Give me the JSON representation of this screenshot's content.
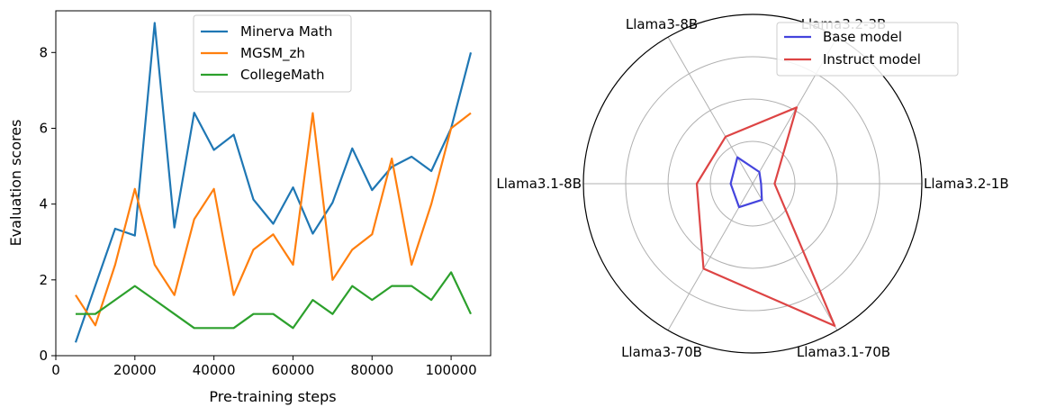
{
  "chart_data": [
    {
      "type": "line",
      "title": "",
      "xlabel": "Pre-training steps",
      "ylabel": "Evaluation scores",
      "xlim": [
        0,
        110000
      ],
      "ylim": [
        0,
        9.1
      ],
      "xticks": [
        0,
        20000,
        40000,
        60000,
        80000,
        100000
      ],
      "xtick_labels": [
        "0",
        "20000",
        "40000",
        "60000",
        "80000",
        "100000"
      ],
      "yticks": [
        0,
        2,
        4,
        6,
        8
      ],
      "ytick_labels": [
        "0",
        "2",
        "4",
        "6",
        "8"
      ],
      "grid": false,
      "legend_position": "top-center",
      "x": [
        5000,
        10000,
        15000,
        20000,
        25000,
        30000,
        35000,
        40000,
        45000,
        50000,
        55000,
        60000,
        65000,
        70000,
        75000,
        80000,
        85000,
        90000,
        95000,
        100000,
        105000
      ],
      "series": [
        {
          "name": "Minerva Math",
          "color": "#1f77b4",
          "values": [
            0.35,
            1.85,
            3.35,
            3.17,
            8.78,
            3.38,
            6.41,
            5.43,
            5.83,
            4.12,
            3.48,
            4.44,
            3.22,
            4.04,
            5.47,
            4.37,
            4.98,
            5.25,
            4.87,
            6.0,
            8.0
          ]
        },
        {
          "name": "MGSM_zh",
          "color": "#ff7f0e",
          "values": [
            1.6,
            0.8,
            2.4,
            4.4,
            2.4,
            1.6,
            3.6,
            4.4,
            1.6,
            2.8,
            3.2,
            2.4,
            6.4,
            2.0,
            2.8,
            3.2,
            5.2,
            2.4,
            4.0,
            6.0,
            6.4
          ]
        },
        {
          "name": "CollegeMath",
          "color": "#2ca02c",
          "values": [
            1.1,
            1.1,
            1.47,
            1.84,
            1.47,
            1.1,
            0.73,
            0.73,
            0.73,
            1.1,
            1.1,
            0.73,
            1.47,
            1.1,
            1.84,
            1.47,
            1.84,
            1.84,
            1.47,
            2.2,
            1.1
          ]
        }
      ]
    },
    {
      "type": "radar",
      "title": "",
      "categories": [
        "Llama3.2-1B",
        "Llama3.2-3B",
        "Llama3-8B",
        "Llama3.1-8B",
        "Llama3-70B",
        "Llama3.1-70B"
      ],
      "radial_max": 1.0,
      "grid": true,
      "legend_position": "top-right",
      "series": [
        {
          "name": "Base model",
          "color": "#4444dd",
          "values": [
            0.05,
            0.08,
            0.18,
            0.13,
            0.16,
            0.11
          ]
        },
        {
          "name": "Instruct model",
          "color": "#dd4444",
          "values": [
            0.13,
            0.52,
            0.32,
            0.33,
            0.58,
            0.97
          ]
        }
      ]
    }
  ]
}
